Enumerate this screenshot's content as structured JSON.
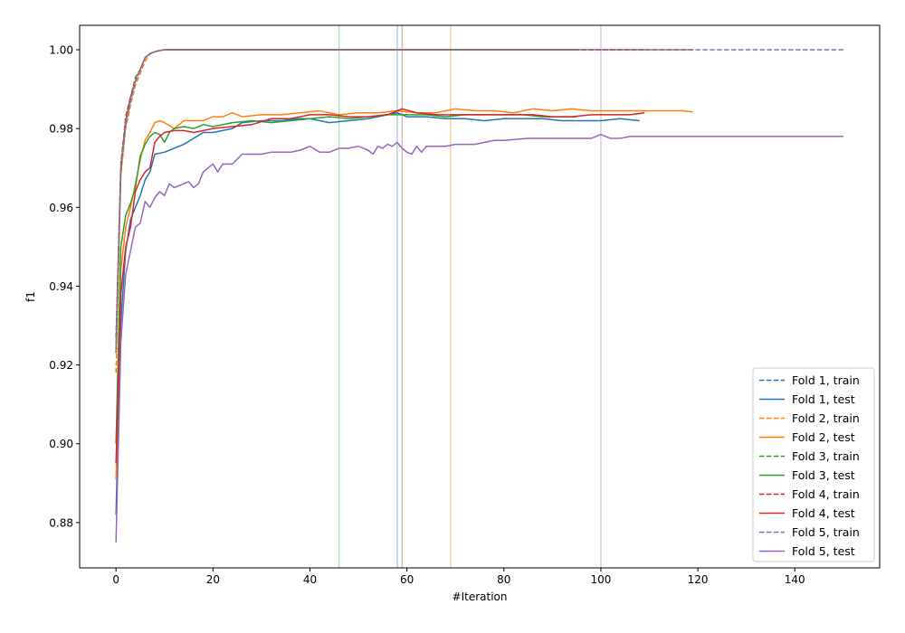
{
  "chart_data": {
    "type": "line",
    "xlabel": "#Iteration",
    "ylabel": "f1",
    "xlim": [
      -7.5,
      157.5
    ],
    "ylim": [
      0.8685,
      1.0062
    ],
    "x_ticks": [
      0,
      20,
      40,
      60,
      80,
      100,
      120,
      140
    ],
    "y_ticks": [
      0.88,
      0.9,
      0.92,
      0.94,
      0.96,
      0.98,
      1.0
    ],
    "grid": false,
    "legend_position": "lower-right",
    "vertical_lines": [
      {
        "x": 46,
        "color": "#2ca02c"
      },
      {
        "x": 58,
        "color": "#1f77b4"
      },
      {
        "x": 59,
        "color": "#d62728"
      },
      {
        "x": 69,
        "color": "#ff7f0e"
      },
      {
        "x": 100,
        "color": "#9467bd"
      }
    ],
    "series": [
      {
        "name": "Fold 1, train",
        "color": "#1f77b4",
        "dash": true,
        "x": [
          0,
          1,
          2,
          3,
          4,
          5,
          6,
          7,
          8,
          9,
          10,
          12,
          15,
          20,
          40,
          60,
          80,
          100,
          119
        ],
        "y": [
          0.923,
          0.969,
          0.981,
          0.987,
          0.992,
          0.995,
          0.998,
          0.999,
          0.9995,
          0.9998,
          1.0,
          1.0,
          1.0,
          1.0,
          1.0,
          1.0,
          1.0,
          1.0,
          1.0
        ]
      },
      {
        "name": "Fold 1, test",
        "color": "#1f77b4",
        "dash": false,
        "x": [
          0,
          1,
          2,
          3,
          4,
          5,
          6,
          7,
          8,
          10,
          12,
          14,
          16,
          18,
          20,
          24,
          26,
          30,
          34,
          38,
          40,
          44,
          48,
          52,
          56,
          58,
          60,
          64,
          68,
          72,
          76,
          80,
          84,
          88,
          92,
          96,
          100,
          104,
          108
        ],
        "y": [
          0.882,
          0.931,
          0.949,
          0.957,
          0.96,
          0.963,
          0.967,
          0.969,
          0.9735,
          0.974,
          0.975,
          0.976,
          0.9775,
          0.979,
          0.979,
          0.98,
          0.9815,
          0.982,
          0.982,
          0.9825,
          0.9825,
          0.9815,
          0.982,
          0.9825,
          0.9835,
          0.984,
          0.983,
          0.983,
          0.9825,
          0.9825,
          0.982,
          0.9825,
          0.9825,
          0.9825,
          0.982,
          0.982,
          0.982,
          0.9825,
          0.982
        ]
      },
      {
        "name": "Fold 2, train",
        "color": "#ff7f0e",
        "dash": true,
        "x": [
          0,
          1,
          2,
          3,
          4,
          5,
          6,
          7,
          8,
          9,
          10,
          12,
          15,
          20,
          40,
          60,
          80,
          100,
          119
        ],
        "y": [
          0.918,
          0.968,
          0.98,
          0.986,
          0.991,
          0.994,
          0.997,
          0.999,
          0.9995,
          0.9998,
          1.0,
          1.0,
          1.0,
          1.0,
          1.0,
          1.0,
          1.0,
          1.0,
          1.0
        ]
      },
      {
        "name": "Fold 2, test",
        "color": "#ff7f0e",
        "dash": false,
        "x": [
          0,
          1,
          2,
          3,
          4,
          5,
          6,
          7,
          8,
          9,
          10,
          12,
          14,
          16,
          18,
          20,
          22,
          24,
          26,
          30,
          34,
          38,
          42,
          46,
          50,
          54,
          58,
          62,
          66,
          70,
          74,
          78,
          82,
          86,
          90,
          94,
          98,
          102,
          106,
          110,
          114,
          117,
          119
        ],
        "y": [
          0.891,
          0.944,
          0.955,
          0.96,
          0.966,
          0.972,
          0.977,
          0.979,
          0.9815,
          0.982,
          0.9815,
          0.98,
          0.982,
          0.982,
          0.982,
          0.983,
          0.983,
          0.984,
          0.983,
          0.9835,
          0.9835,
          0.984,
          0.9845,
          0.9835,
          0.984,
          0.984,
          0.9845,
          0.984,
          0.984,
          0.985,
          0.9845,
          0.9845,
          0.984,
          0.985,
          0.9845,
          0.985,
          0.9845,
          0.9845,
          0.9845,
          0.9845,
          0.9845,
          0.9845,
          0.9842
        ]
      },
      {
        "name": "Fold 3, train",
        "color": "#2ca02c",
        "dash": true,
        "x": [
          0,
          1,
          2,
          3,
          4,
          5,
          6,
          7,
          8,
          9,
          10,
          12,
          15,
          20,
          40,
          60,
          80,
          95
        ],
        "y": [
          0.924,
          0.97,
          0.982,
          0.988,
          0.993,
          0.995,
          0.998,
          0.999,
          0.9995,
          0.9998,
          1.0,
          1.0,
          1.0,
          1.0,
          1.0,
          1.0,
          1.0,
          1.0
        ]
      },
      {
        "name": "Fold 3, test",
        "color": "#2ca02c",
        "dash": false,
        "x": [
          0,
          1,
          2,
          3,
          4,
          5,
          6,
          7,
          8,
          9,
          10,
          11,
          12,
          14,
          16,
          18,
          20,
          24,
          28,
          32,
          36,
          40,
          44,
          48,
          52,
          56,
          60,
          64,
          68,
          72,
          76,
          80,
          84,
          88,
          92,
          95
        ],
        "y": [
          0.9,
          0.95,
          0.958,
          0.961,
          0.965,
          0.973,
          0.976,
          0.978,
          0.979,
          0.9785,
          0.9765,
          0.979,
          0.98,
          0.9805,
          0.98,
          0.981,
          0.9805,
          0.9815,
          0.982,
          0.9815,
          0.982,
          0.9825,
          0.983,
          0.9825,
          0.983,
          0.9835,
          0.9835,
          0.9835,
          0.983,
          0.9835,
          0.9835,
          0.9835,
          0.9835,
          0.983,
          0.983,
          0.983
        ]
      },
      {
        "name": "Fold 4, train",
        "color": "#d62728",
        "dash": true,
        "x": [
          0,
          1,
          2,
          3,
          4,
          5,
          6,
          7,
          8,
          9,
          10,
          12,
          15,
          20,
          40,
          60,
          80,
          100,
          109
        ],
        "y": [
          0.927,
          0.971,
          0.983,
          0.988,
          0.992,
          0.995,
          0.998,
          0.999,
          0.9995,
          0.9998,
          1.0,
          1.0,
          1.0,
          1.0,
          1.0,
          1.0,
          1.0,
          1.0,
          1.0
        ]
      },
      {
        "name": "Fold 4, test",
        "color": "#d62728",
        "dash": false,
        "x": [
          0,
          1,
          2,
          3,
          4,
          5,
          6,
          7,
          8,
          9,
          10,
          12,
          14,
          16,
          18,
          20,
          24,
          28,
          32,
          36,
          40,
          44,
          48,
          52,
          56,
          59,
          62,
          66,
          70,
          74,
          78,
          82,
          86,
          90,
          94,
          98,
          102,
          106,
          109
        ],
        "y": [
          0.895,
          0.938,
          0.95,
          0.955,
          0.964,
          0.967,
          0.969,
          0.97,
          0.9765,
          0.978,
          0.979,
          0.9795,
          0.9795,
          0.979,
          0.9795,
          0.98,
          0.9805,
          0.981,
          0.9825,
          0.9825,
          0.9835,
          0.9835,
          0.983,
          0.983,
          0.9835,
          0.985,
          0.984,
          0.9835,
          0.9835,
          0.9835,
          0.9835,
          0.9835,
          0.9835,
          0.983,
          0.983,
          0.9835,
          0.9835,
          0.9835,
          0.984
        ]
      },
      {
        "name": "Fold 5, train",
        "color": "#9467bd",
        "dash": true,
        "x": [
          0,
          1,
          2,
          3,
          4,
          5,
          6,
          7,
          8,
          9,
          10,
          12,
          15,
          20,
          40,
          60,
          80,
          100,
          120,
          150
        ],
        "y": [
          0.925,
          0.97,
          0.982,
          0.987,
          0.992,
          0.995,
          0.998,
          0.999,
          0.9995,
          0.9998,
          1.0,
          1.0,
          1.0,
          1.0,
          1.0,
          1.0,
          1.0,
          1.0,
          1.0,
          1.0
        ]
      },
      {
        "name": "Fold 5, test",
        "color": "#9467bd",
        "dash": false,
        "x": [
          0,
          1,
          2,
          3,
          4,
          5,
          6,
          7,
          8,
          9,
          10,
          11,
          12,
          13,
          14,
          15,
          16,
          17,
          18,
          19,
          20,
          21,
          22,
          24,
          26,
          28,
          30,
          32,
          34,
          36,
          38,
          40,
          42,
          44,
          46,
          48,
          50,
          52,
          53,
          54,
          55,
          56,
          57,
          58,
          59,
          60,
          61,
          62,
          63,
          64,
          66,
          68,
          70,
          72,
          74,
          76,
          78,
          80,
          85,
          90,
          92,
          95,
          98,
          100,
          102,
          104,
          106,
          110,
          120,
          130,
          140,
          150
        ],
        "y": [
          0.875,
          0.926,
          0.943,
          0.949,
          0.955,
          0.956,
          0.9615,
          0.96,
          0.9625,
          0.964,
          0.963,
          0.966,
          0.965,
          0.9655,
          0.966,
          0.9665,
          0.965,
          0.966,
          0.969,
          0.97,
          0.971,
          0.969,
          0.971,
          0.971,
          0.9735,
          0.9735,
          0.9735,
          0.974,
          0.974,
          0.974,
          0.9745,
          0.9755,
          0.974,
          0.974,
          0.975,
          0.975,
          0.9755,
          0.9745,
          0.9735,
          0.9755,
          0.975,
          0.976,
          0.9755,
          0.9765,
          0.975,
          0.974,
          0.9735,
          0.9755,
          0.974,
          0.9755,
          0.9755,
          0.9755,
          0.976,
          0.976,
          0.976,
          0.9765,
          0.977,
          0.977,
          0.9775,
          0.9775,
          0.9775,
          0.9775,
          0.9775,
          0.9785,
          0.9775,
          0.9775,
          0.978,
          0.978,
          0.978,
          0.978,
          0.978,
          0.978
        ]
      }
    ]
  }
}
